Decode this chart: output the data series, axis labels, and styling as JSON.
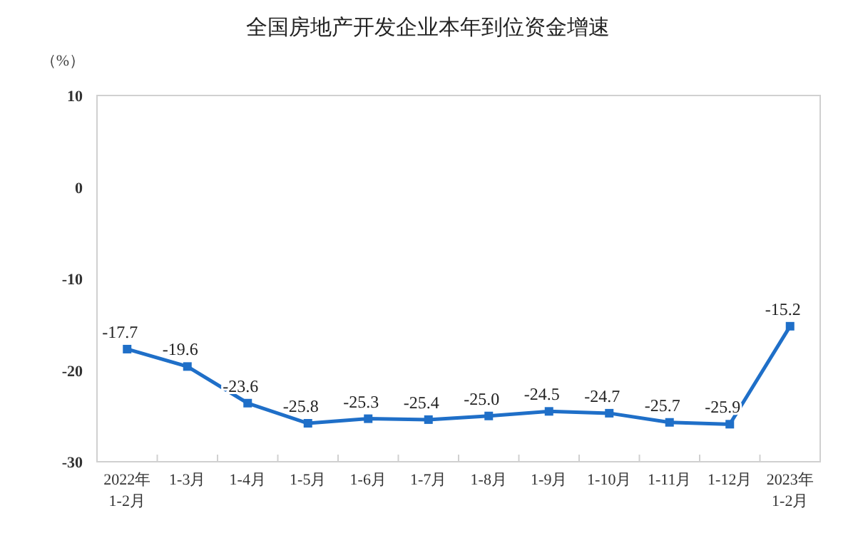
{
  "chart_data": {
    "type": "line",
    "title": "全国房地产开发企业本年到位资金增速",
    "ylabel": "（%）",
    "categories": [
      "2022年\n1-2月",
      "1-3月",
      "1-4月",
      "1-5月",
      "1-6月",
      "1-7月",
      "1-8月",
      "1-9月",
      "1-10月",
      "1-11月",
      "1-12月",
      "2023年\n1-2月"
    ],
    "series": [
      {
        "color": "#1f6fc8",
        "values": [
          -17.7,
          -19.6,
          -23.6,
          -25.8,
          -25.3,
          -25.4,
          -25.0,
          -24.5,
          -24.7,
          -25.7,
          -25.9,
          -15.2
        ],
        "value_labels": [
          "-17.7",
          "-19.6",
          "-23.6",
          "-25.8",
          "-25.3",
          "-25.4",
          "-25.0",
          "-24.5",
          "-24.7",
          "-25.7",
          "-25.9",
          "-15.2"
        ]
      }
    ],
    "ylim": [
      -30,
      10
    ],
    "yticks": [
      -30,
      -20,
      -10,
      0,
      10
    ],
    "grid": false,
    "marker": "square",
    "line_style": "solid"
  }
}
